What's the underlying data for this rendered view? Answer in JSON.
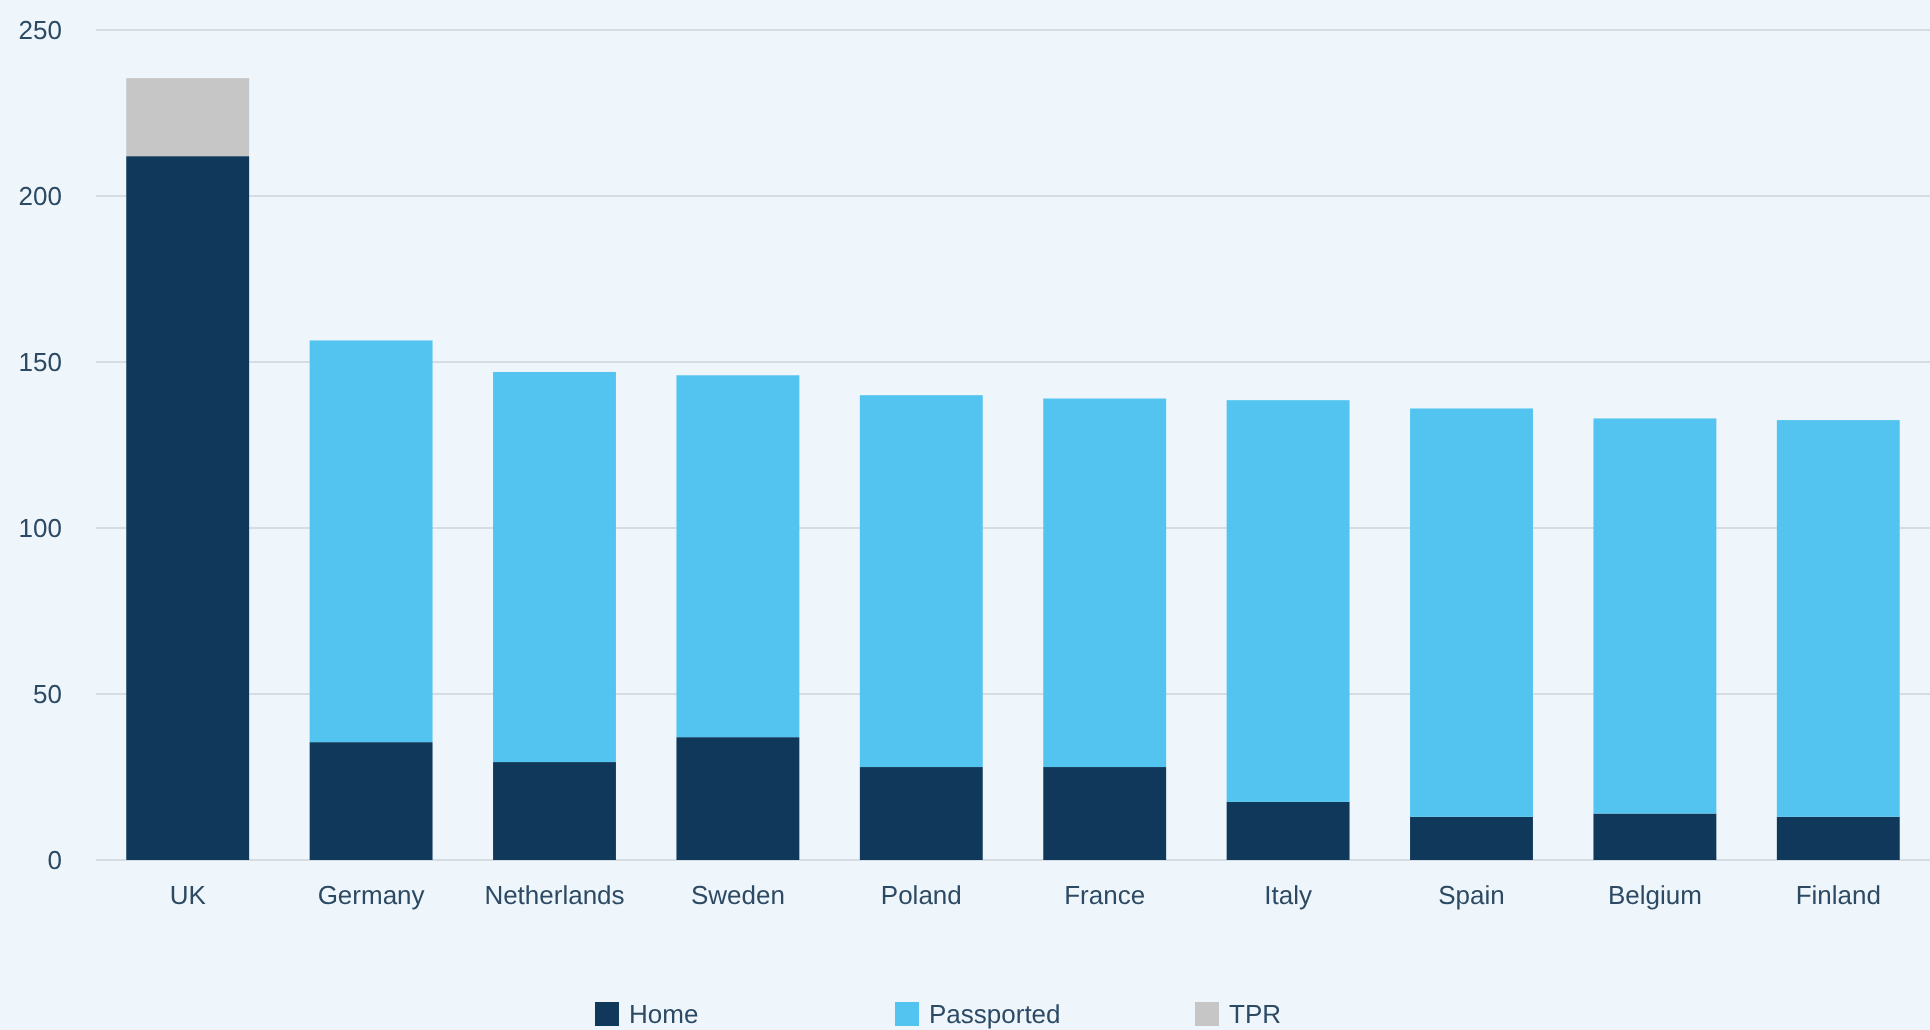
{
  "chart_data": {
    "type": "bar",
    "stacked": true,
    "categories": [
      "UK",
      "Germany",
      "Netherlands",
      "Sweden",
      "Poland",
      "France",
      "Italy",
      "Spain",
      "Belgium",
      "Finland"
    ],
    "series": [
      {
        "name": "Home",
        "color": "#0f385a",
        "values": [
          212,
          35.5,
          29.5,
          37,
          28,
          28,
          17.5,
          13,
          14,
          13
        ]
      },
      {
        "name": "Passported",
        "color": "#52c4ef",
        "values": [
          null,
          121,
          117.5,
          109,
          112,
          111,
          121,
          123,
          119,
          119.5
        ]
      },
      {
        "name": "TPR",
        "color": "#c6c6c6",
        "values": [
          23.5,
          null,
          null,
          null,
          null,
          null,
          null,
          null,
          null,
          null
        ]
      }
    ],
    "ylim": [
      0,
      250
    ],
    "yticks": [
      0,
      50,
      100,
      150,
      200,
      250
    ],
    "grid": "y",
    "legend": "bottom"
  }
}
